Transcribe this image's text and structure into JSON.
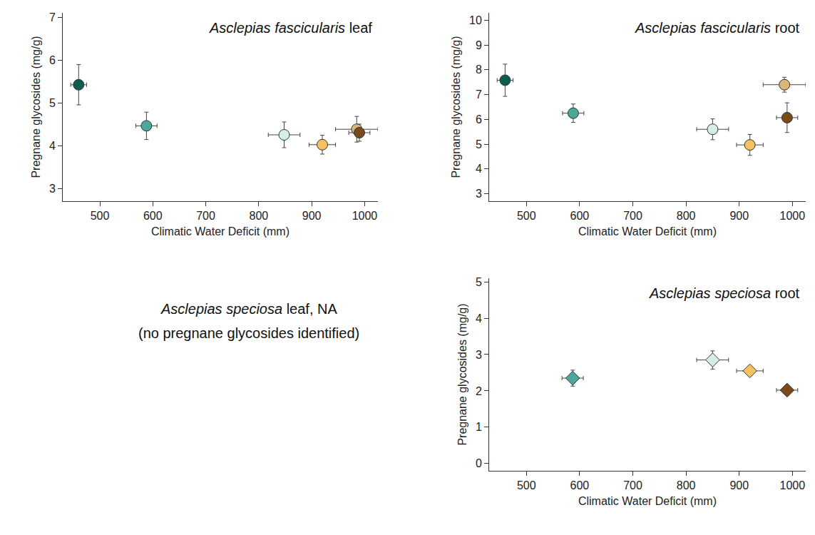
{
  "chart_data": [
    {
      "type": "scatter",
      "title": "Asclepias fascicularis leaf",
      "x_label": "Climatic Water Deficit (mm)",
      "y_label": "Pregnane glycosides (mg/g)",
      "x": [
        460,
        588,
        848,
        920,
        985,
        990
      ],
      "values": [
        5.42,
        4.46,
        4.25,
        4.02,
        4.38,
        4.3
      ],
      "x_error": [
        15,
        20,
        30,
        25,
        40,
        20
      ],
      "y_error": [
        0.47,
        0.32,
        0.3,
        0.22,
        0.3,
        0.2
      ],
      "colors": [
        "#0d5c52",
        "#4aa89a",
        "#d5efe5",
        "#f5c160",
        "#d8b57a",
        "#7a4a1a"
      ],
      "marker": "circle",
      "grid": false,
      "xlim": [
        430,
        1025
      ],
      "ylim": [
        2.7,
        7.1
      ],
      "xticks": [
        500,
        600,
        700,
        800,
        900,
        1000
      ],
      "yticks": [
        3,
        4,
        5,
        6,
        7
      ]
    },
    {
      "type": "scatter",
      "title": "Asclepias fascicularis root",
      "x_label": "Climatic Water Deficit (mm)",
      "y_label": "Pregnane glycosides (mg/g)",
      "x": [
        460,
        588,
        850,
        920,
        985,
        990
      ],
      "values": [
        7.58,
        6.25,
        5.6,
        4.97,
        7.4,
        6.07
      ],
      "x_error": [
        15,
        20,
        30,
        25,
        40,
        20
      ],
      "y_error": [
        0.65,
        0.37,
        0.42,
        0.42,
        0.3,
        0.6
      ],
      "colors": [
        "#0d5c52",
        "#4aa89a",
        "#d5efe5",
        "#f5c160",
        "#d8b57a",
        "#7a4a1a"
      ],
      "marker": "circle",
      "grid": false,
      "xlim": [
        430,
        1025
      ],
      "ylim": [
        2.7,
        10.3
      ],
      "xticks": [
        500,
        600,
        700,
        800,
        900,
        1000
      ],
      "yticks": [
        3,
        4,
        5,
        6,
        7,
        8,
        9,
        10
      ]
    },
    {
      "type": "text",
      "title": "Asclepias speciosa leaf, NA",
      "subtitle": "(no pregnane glycosides identified)"
    },
    {
      "type": "scatter",
      "title": "Asclepias speciosa root",
      "x_label": "Climatic Water Deficit (mm)",
      "y_label": "Pregnane glycosides (mg/g)",
      "x": [
        587,
        850,
        920,
        990
      ],
      "values": [
        2.35,
        2.85,
        2.55,
        2.02
      ],
      "x_error": [
        20,
        30,
        25,
        20
      ],
      "y_error": [
        0.22,
        0.25,
        0.12,
        0.12
      ],
      "colors": [
        "#4aa89a",
        "#d5efe5",
        "#f5c160",
        "#7a4a1a"
      ],
      "marker": "diamond",
      "grid": false,
      "xlim": [
        430,
        1025
      ],
      "ylim": [
        -0.2,
        5.1
      ],
      "xticks": [
        500,
        600,
        700,
        800,
        900,
        1000
      ],
      "yticks": [
        0,
        1,
        2,
        3,
        4,
        5
      ]
    }
  ]
}
